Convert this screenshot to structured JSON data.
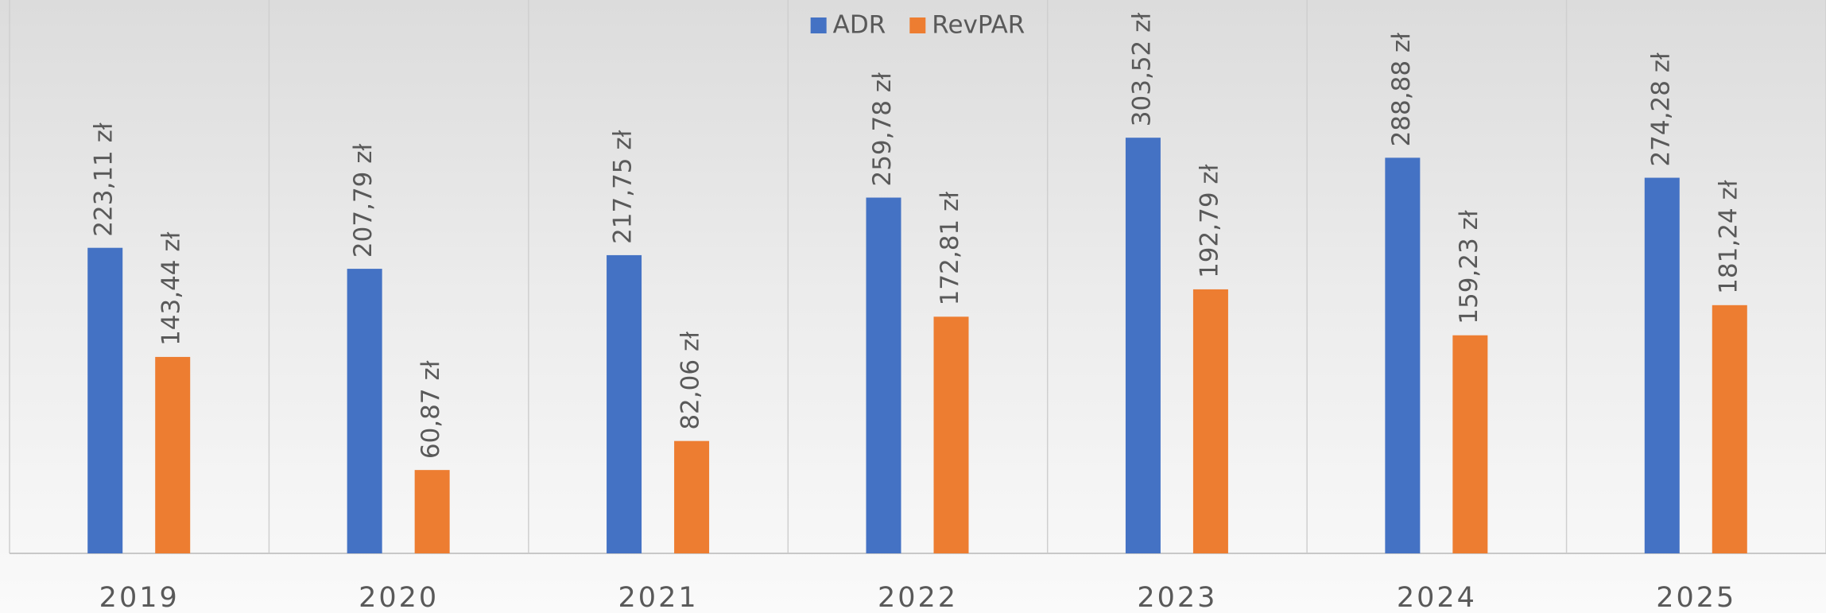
{
  "chart_data": {
    "type": "bar",
    "categories": [
      "2019",
      "2020",
      "2021",
      "2022",
      "2023",
      "2024",
      "2025"
    ],
    "series": [
      {
        "name": "ADR",
        "color": "#4472c4",
        "values": [
          223.11,
          207.79,
          217.75,
          259.78,
          303.52,
          288.88,
          274.28
        ],
        "value_labels": [
          "223,11 zł",
          "207,79 zł",
          "217,75 zł",
          "259,78 zł",
          "303,52 zł",
          "288,88 zł",
          "274,28 zł"
        ]
      },
      {
        "name": "RevPAR",
        "color": "#ed7d31",
        "values": [
          143.44,
          60.87,
          82.06,
          172.81,
          192.79,
          159.23,
          181.24
        ],
        "value_labels": [
          "143,44 zł",
          "60,87 zł",
          "82,06 zł",
          "172,81 zł",
          "192,79 zł",
          "159,23 zł",
          "181,24 zł"
        ]
      }
    ],
    "ylim": [
      0,
      400
    ],
    "legend": "top"
  }
}
